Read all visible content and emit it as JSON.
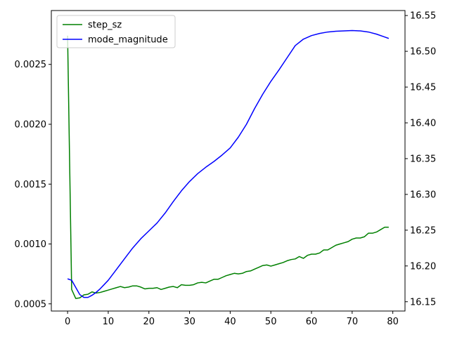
{
  "chart_data": {
    "type": "line",
    "title": "",
    "xlabel": "",
    "ylabel": "",
    "xlim": [
      -4,
      83
    ],
    "ylim_left": [
      0.00044,
      0.00295
    ],
    "ylim_right": [
      16.137,
      16.557
    ],
    "xticks": [
      0,
      10,
      20,
      30,
      40,
      50,
      60,
      70,
      80
    ],
    "xtick_labels": [
      "0",
      "10",
      "20",
      "30",
      "40",
      "50",
      "60",
      "70",
      "80"
    ],
    "yticks_left": [
      0.0005,
      0.001,
      0.0015,
      0.002,
      0.0025
    ],
    "ytick_labels_left": [
      "0.0005",
      "0.0010",
      "0.0015",
      "0.0020",
      "0.0025"
    ],
    "yticks_right": [
      16.15,
      16.2,
      16.25,
      16.3,
      16.35,
      16.4,
      16.45,
      16.5,
      16.55
    ],
    "ytick_labels_right": [
      "16.15",
      "16.20",
      "16.25",
      "16.30",
      "16.35",
      "16.40",
      "16.45",
      "16.50",
      "16.55"
    ],
    "grid": false,
    "legend_position": "top-left",
    "series": [
      {
        "name": "step_sz",
        "axis": "left",
        "color": "#008000",
        "x": [
          0,
          1,
          2,
          3,
          4,
          5,
          6,
          7,
          8,
          9,
          10,
          11,
          12,
          13,
          14,
          15,
          16,
          17,
          18,
          19,
          20,
          21,
          22,
          23,
          24,
          25,
          26,
          27,
          28,
          29,
          30,
          31,
          32,
          33,
          34,
          35,
          36,
          37,
          38,
          39,
          40,
          41,
          42,
          43,
          44,
          45,
          46,
          47,
          48,
          49,
          50,
          51,
          52,
          53,
          54,
          55,
          56,
          57,
          58,
          59,
          60,
          61,
          62,
          63,
          64,
          65,
          66,
          67,
          68,
          69,
          70,
          71,
          72,
          73,
          74,
          75,
          76,
          77,
          78,
          79
        ],
        "values": [
          0.00274,
          0.00062,
          0.000545,
          0.00055,
          0.000575,
          0.00058,
          0.0006,
          0.00059,
          0.000595,
          0.000605,
          0.000615,
          0.000625,
          0.000635,
          0.000645,
          0.000635,
          0.00064,
          0.00065,
          0.00065,
          0.00064,
          0.000625,
          0.00063,
          0.00063,
          0.000635,
          0.00062,
          0.00063,
          0.00064,
          0.000645,
          0.000635,
          0.00066,
          0.000655,
          0.000655,
          0.00066,
          0.000675,
          0.00068,
          0.000675,
          0.00069,
          0.000705,
          0.000705,
          0.00072,
          0.000735,
          0.000745,
          0.000755,
          0.00075,
          0.000755,
          0.00077,
          0.000775,
          0.00079,
          0.000805,
          0.00082,
          0.000825,
          0.000815,
          0.000825,
          0.000835,
          0.000845,
          0.00086,
          0.00087,
          0.000875,
          0.000895,
          0.00088,
          0.000905,
          0.000915,
          0.000915,
          0.000925,
          0.00095,
          0.00095,
          0.00097,
          0.00099,
          0.001,
          0.00101,
          0.00102,
          0.00104,
          0.00105,
          0.00105,
          0.00106,
          0.00109,
          0.00109,
          0.0011,
          0.00112,
          0.00114,
          0.00114
        ]
      },
      {
        "name": "mode_magnitude",
        "axis": "right",
        "color": "#0000ff",
        "x": [
          0,
          1,
          2,
          3,
          4,
          5,
          6,
          7,
          8,
          9,
          10,
          12,
          14,
          16,
          18,
          20,
          22,
          24,
          26,
          28,
          30,
          32,
          34,
          36,
          38,
          40,
          42,
          44,
          46,
          48,
          50,
          52,
          54,
          56,
          58,
          60,
          62,
          64,
          66,
          68,
          70,
          72,
          74,
          76,
          78,
          79
        ],
        "values": [
          16.182,
          16.18,
          16.17,
          16.16,
          16.156,
          16.156,
          16.159,
          16.163,
          16.168,
          16.174,
          16.18,
          16.195,
          16.21,
          16.225,
          16.238,
          16.249,
          16.26,
          16.274,
          16.29,
          16.305,
          16.318,
          16.329,
          16.338,
          16.346,
          16.355,
          16.365,
          16.38,
          16.398,
          16.42,
          16.44,
          16.458,
          16.474,
          16.491,
          16.508,
          16.517,
          16.522,
          16.525,
          16.527,
          16.528,
          16.5285,
          16.529,
          16.5285,
          16.527,
          16.524,
          16.52,
          16.518
        ]
      }
    ]
  }
}
